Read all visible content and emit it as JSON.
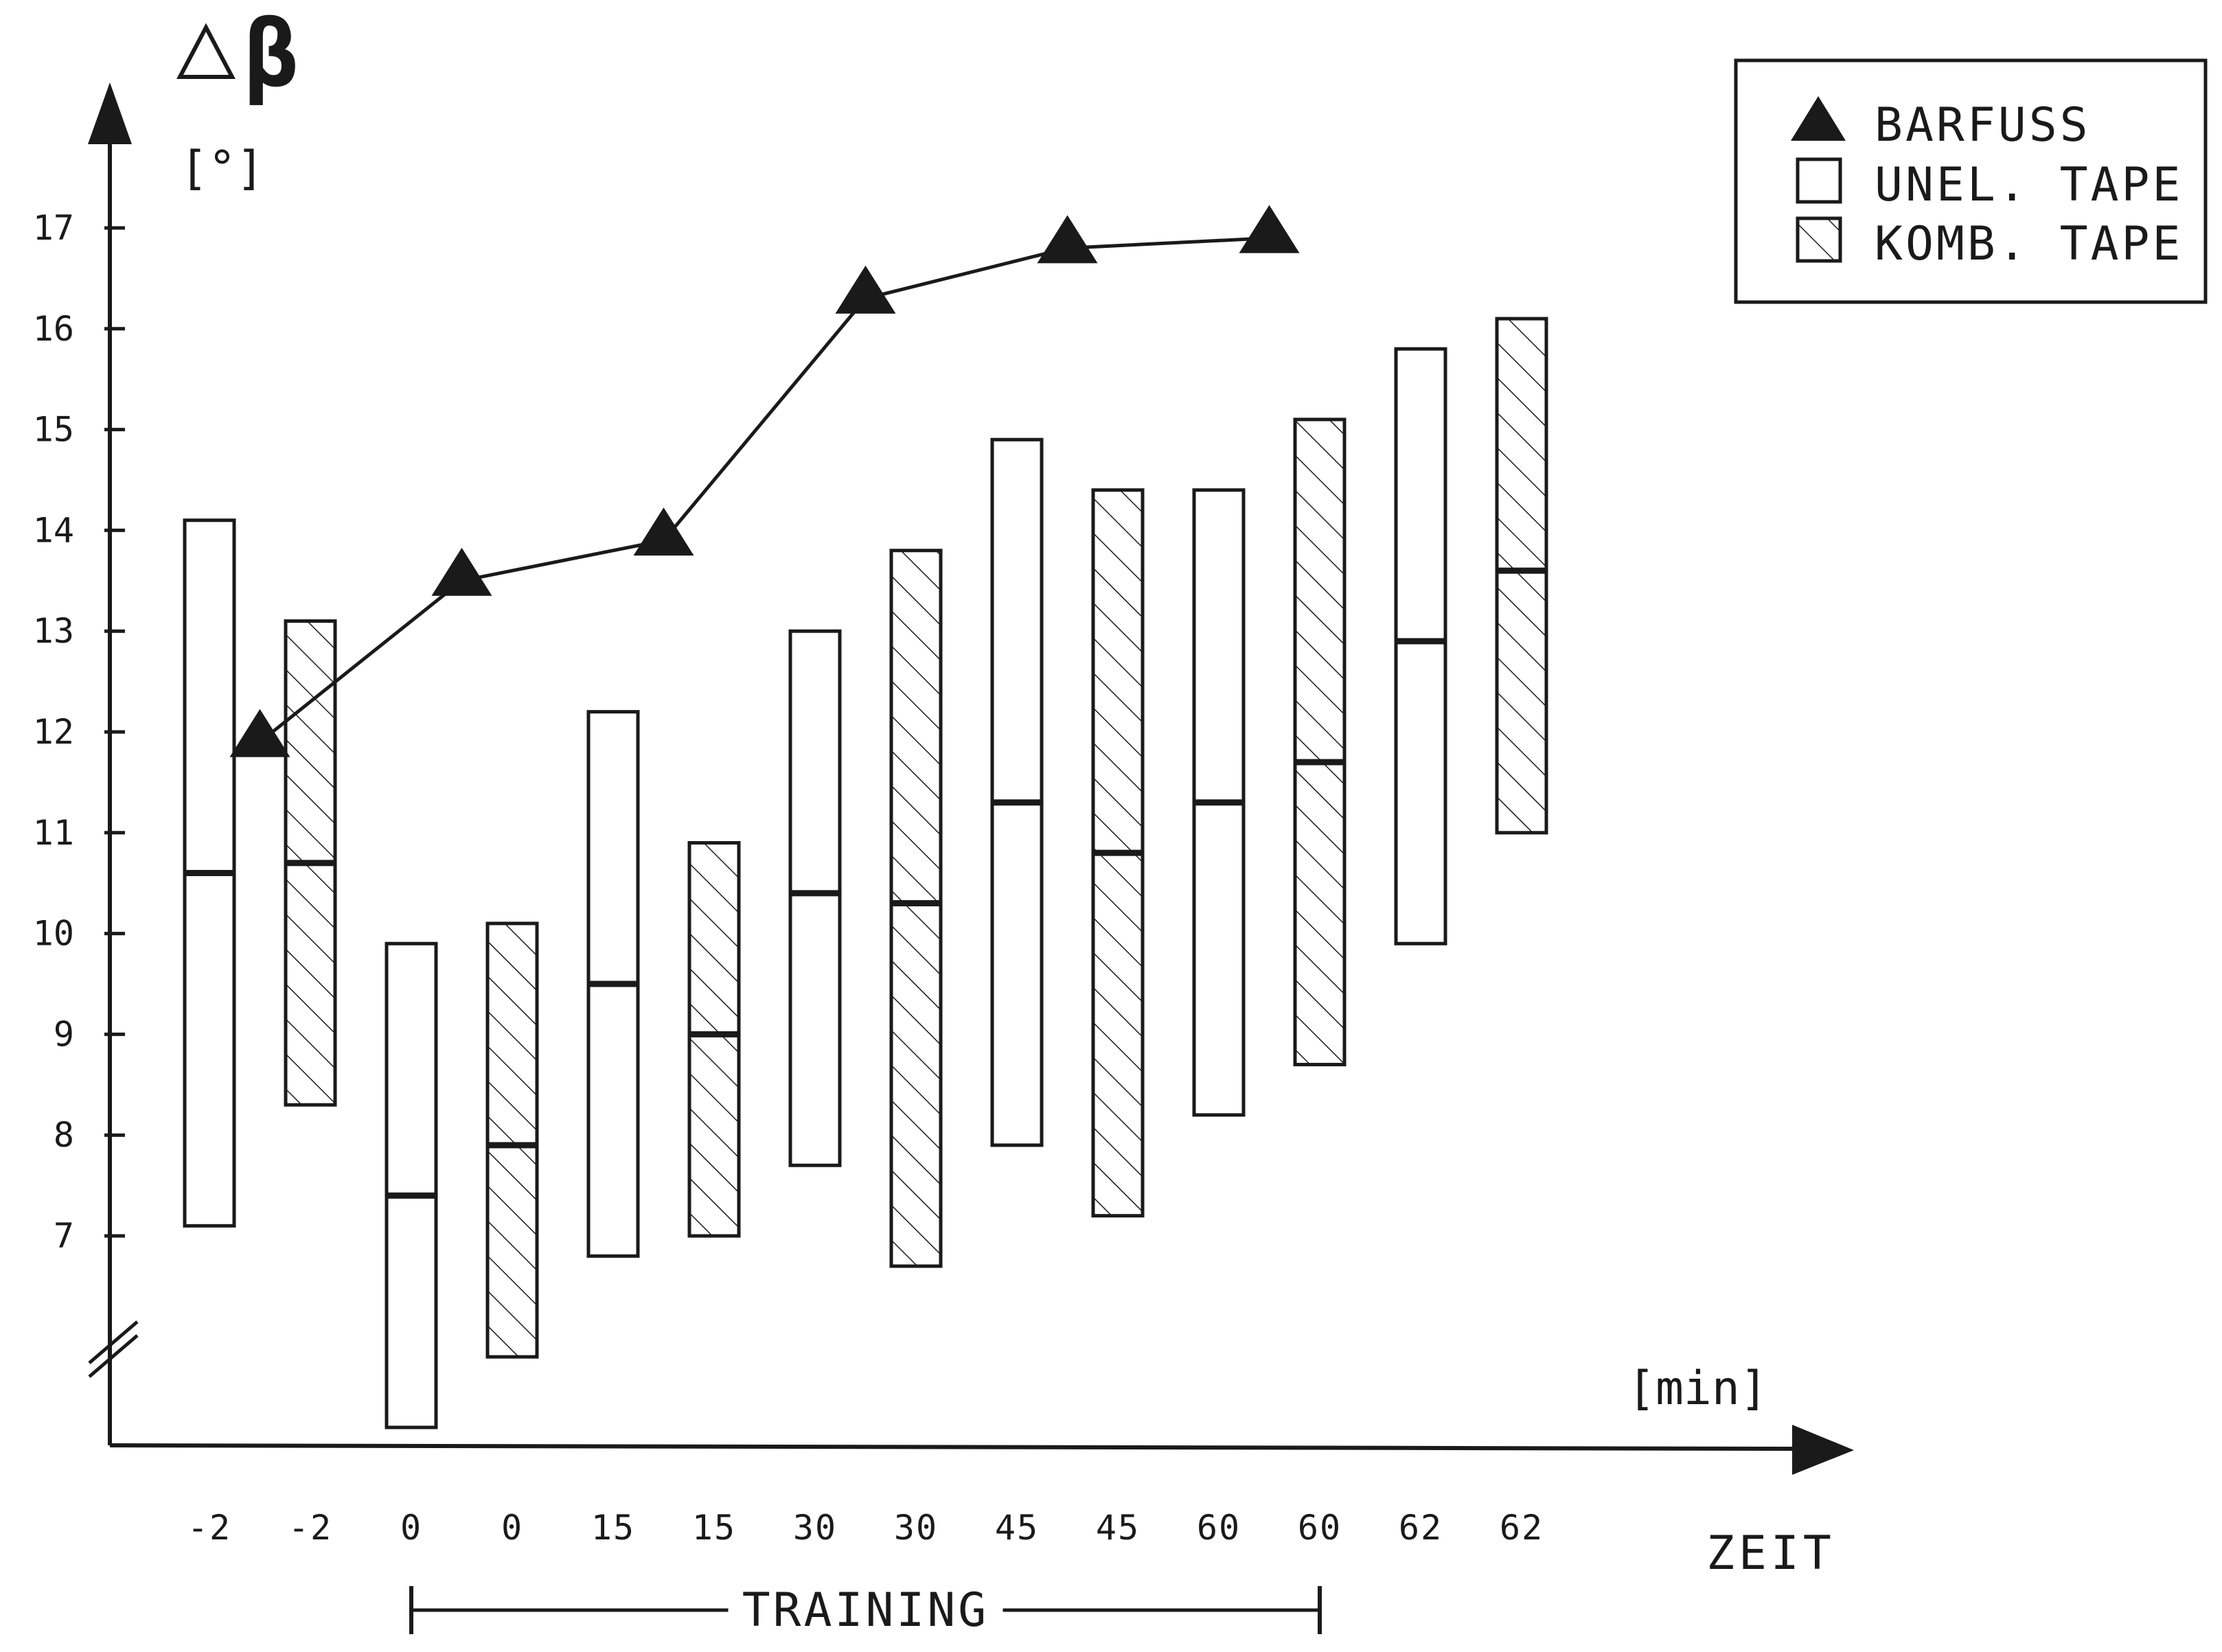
{
  "chart_data": {
    "type": "range-bar",
    "ylabel_symbol": "△β",
    "ylabel_unit": "[°]",
    "xlabel": "ZEIT",
    "xlabel_unit": "[min]",
    "ylim": [
      6.5,
      17.5
    ],
    "yticks": [
      7,
      8,
      9,
      10,
      11,
      12,
      13,
      14,
      15,
      16,
      17
    ],
    "ytick_labels": [
      "7",
      "8",
      "9",
      "10",
      "11",
      "12",
      "13",
      "14",
      "15",
      "16",
      "17"
    ],
    "axis_break": true,
    "categories": [
      "-2",
      "-2",
      "0",
      "0",
      "15",
      "15",
      "30",
      "30",
      "45",
      "45",
      "60",
      "60",
      "62",
      "62"
    ],
    "training_label": "TRAINING",
    "training_span": [
      "0",
      "60"
    ],
    "legend": [
      {
        "symbol": "triangle",
        "label": "BARFUSS"
      },
      {
        "symbol": "open-box",
        "label": "UNEL. TAPE"
      },
      {
        "symbol": "hatched-box",
        "label": "KOMB. TAPE"
      }
    ],
    "series": [
      {
        "name": "BARFUSS",
        "kind": "line",
        "points": [
          {
            "x": "-2",
            "y": 11.9
          },
          {
            "x": "0",
            "y": 13.5
          },
          {
            "x": "15",
            "y": 13.9
          },
          {
            "x": "30",
            "y": 16.3
          },
          {
            "x": "45",
            "y": 16.8
          },
          {
            "x": "60",
            "y": 16.9
          }
        ]
      },
      {
        "name": "UNEL. TAPE",
        "kind": "range",
        "ranges": [
          {
            "x": "-2",
            "min": 7.1,
            "max": 14.1,
            "median": 10.6
          },
          {
            "x": "0",
            "min": 5.1,
            "max": 9.9,
            "median": 7.4
          },
          {
            "x": "15",
            "min": 6.8,
            "max": 12.2,
            "median": 9.5
          },
          {
            "x": "30",
            "min": 7.7,
            "max": 13.0,
            "median": 10.4
          },
          {
            "x": "45",
            "min": 7.9,
            "max": 14.9,
            "median": 11.3
          },
          {
            "x": "60",
            "min": 8.2,
            "max": 14.4,
            "median": 11.3
          },
          {
            "x": "62",
            "min": 9.9,
            "max": 15.8,
            "median": 12.9
          }
        ]
      },
      {
        "name": "KOMB. TAPE",
        "kind": "range",
        "ranges": [
          {
            "x": "-2",
            "min": 8.3,
            "max": 13.1,
            "median": 10.7
          },
          {
            "x": "0",
            "min": 5.8,
            "max": 10.1,
            "median": 7.9
          },
          {
            "x": "15",
            "min": 7.0,
            "max": 10.9,
            "median": 9.0
          },
          {
            "x": "30",
            "min": 6.7,
            "max": 13.8,
            "median": 10.3
          },
          {
            "x": "45",
            "min": 7.2,
            "max": 14.4,
            "median": 10.8
          },
          {
            "x": "60",
            "min": 8.7,
            "max": 15.1,
            "median": 11.7
          },
          {
            "x": "62",
            "min": 11.0,
            "max": 16.1,
            "median": 13.6
          }
        ]
      }
    ],
    "colors": {
      "ink": "#1a1a1a",
      "background": "#ffffff"
    }
  }
}
